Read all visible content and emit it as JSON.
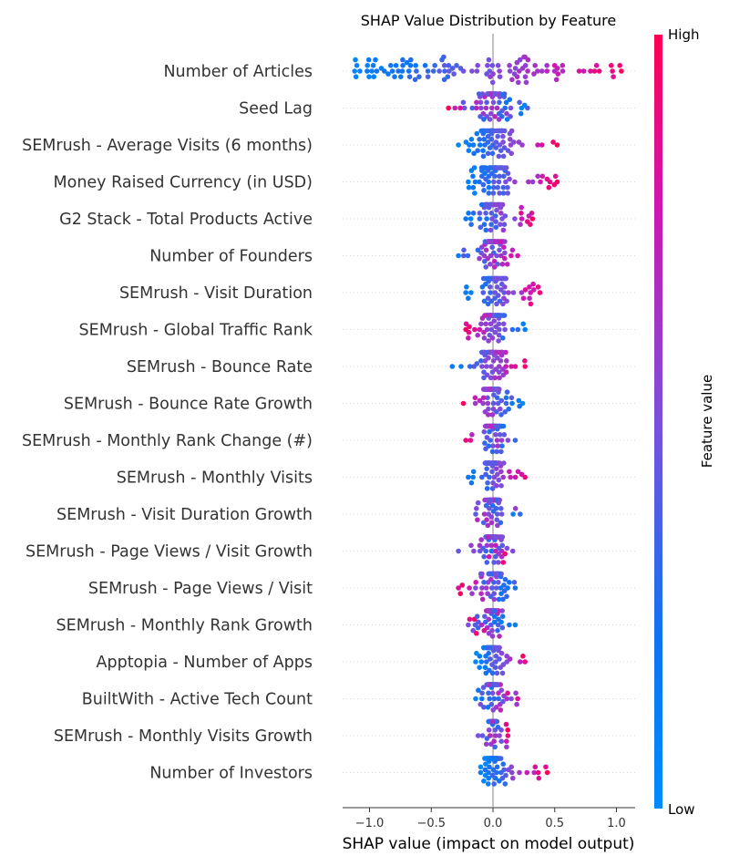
{
  "chart_data": {
    "type": "scatter",
    "subtype": "beeswarm",
    "title": "SHAP Value Distribution by Feature",
    "xlabel": "SHAP value (impact on model output)",
    "ylabel": "",
    "xlim": [
      -1.22,
      1.15
    ],
    "xticks": [
      -1.0,
      -0.5,
      0.0,
      0.5,
      1.0
    ],
    "xtick_labels": [
      "−1.0",
      "−0.5",
      "0.0",
      "0.5",
      "1.0"
    ],
    "grid": false,
    "zero_line": true,
    "colorbar": {
      "label": "Feature value",
      "high_label": "High",
      "low_label": "Low",
      "low_color": "#008bfb",
      "high_color": "#ff0052"
    },
    "features": [
      {
        "name": "Number of Articles",
        "min": -1.12,
        "max": 1.04,
        "low_end": "left",
        "mix": 0.85
      },
      {
        "name": "Seed Lag",
        "min": -0.36,
        "max": 0.28,
        "low_end": "right",
        "mix": 0.5
      },
      {
        "name": "SEMrush - Average Visits (6 months)",
        "min": -0.28,
        "max": 0.52,
        "low_end": "left",
        "mix": 0.9
      },
      {
        "name": "Money Raised Currency (in USD)",
        "min": -0.2,
        "max": 0.52,
        "low_end": "left",
        "mix": 0.8
      },
      {
        "name": "G2 Stack - Total Products Active",
        "min": -0.22,
        "max": 0.32,
        "low_end": "left",
        "mix": 0.7
      },
      {
        "name": "Number of Founders",
        "min": -0.28,
        "max": 0.2,
        "low_end": "left",
        "mix": 0.6
      },
      {
        "name": "SEMrush - Visit Duration",
        "min": -0.22,
        "max": 0.38,
        "low_end": "left",
        "mix": 0.8
      },
      {
        "name": "SEMrush - Global Traffic Rank",
        "min": -0.22,
        "max": 0.26,
        "low_end": "right",
        "mix": 0.7
      },
      {
        "name": "SEMrush - Bounce Rate",
        "min": -0.33,
        "max": 0.26,
        "low_end": "left",
        "mix": 0.8
      },
      {
        "name": "SEMrush - Bounce Rate Growth",
        "min": -0.24,
        "max": 0.24,
        "low_end": "right",
        "mix": 0.7
      },
      {
        "name": "SEMrush - Monthly Rank Change (#)",
        "min": -0.22,
        "max": 0.18,
        "low_end": "right",
        "mix": 0.5
      },
      {
        "name": "SEMrush - Monthly Visits",
        "min": -0.2,
        "max": 0.26,
        "low_end": "left",
        "mix": 0.8
      },
      {
        "name": "SEMrush - Visit Duration Growth",
        "min": -0.14,
        "max": 0.22,
        "low_end": "right",
        "mix": 0.4
      },
      {
        "name": "SEMrush - Page Views / Visit Growth",
        "min": -0.28,
        "max": 0.16,
        "low_end": "left",
        "mix": 0.4
      },
      {
        "name": "SEMrush - Page Views / Visit",
        "min": -0.28,
        "max": 0.18,
        "low_end": "right",
        "mix": 0.6
      },
      {
        "name": "SEMrush - Monthly Rank Growth",
        "min": -0.2,
        "max": 0.18,
        "low_end": "right",
        "mix": 0.4
      },
      {
        "name": "Apptopia - Number of Apps",
        "min": -0.14,
        "max": 0.26,
        "low_end": "left",
        "mix": 0.8
      },
      {
        "name": "BuiltWith - Active Tech Count",
        "min": -0.14,
        "max": 0.2,
        "low_end": "left",
        "mix": 0.5
      },
      {
        "name": "SEMrush - Monthly Visits Growth",
        "min": -0.12,
        "max": 0.12,
        "low_end": "left",
        "mix": 0.4
      },
      {
        "name": "Number of Investors",
        "min": -0.1,
        "max": 0.44,
        "low_end": "left",
        "mix": 0.8
      }
    ]
  }
}
